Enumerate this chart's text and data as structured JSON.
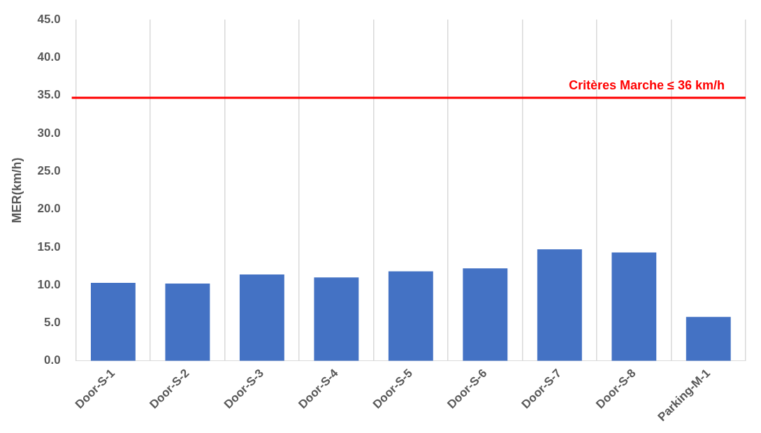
{
  "chart_data": {
    "type": "bar",
    "ylabel": "MER(km/h)",
    "categories": [
      "Door-S-1",
      "Door-S-2",
      "Door-S-3",
      "Door-S-4",
      "Door-S-5",
      "Door-S-6",
      "Door-S-7",
      "Door-S-8",
      "Parking-M-1"
    ],
    "values": [
      10.3,
      10.2,
      11.4,
      11.0,
      11.8,
      12.2,
      14.7,
      14.3,
      5.8
    ],
    "color": "#4472c4",
    "ylim": [
      0,
      45
    ],
    "yticks": [
      {
        "value": 0,
        "label": "0.0"
      },
      {
        "value": 5,
        "label": "5.0"
      },
      {
        "value": 10,
        "label": "10.0"
      },
      {
        "value": 15,
        "label": "15.0"
      },
      {
        "value": 20,
        "label": "20.0"
      },
      {
        "value": 25,
        "label": "25.0"
      },
      {
        "value": 30,
        "label": "30.0"
      },
      {
        "value": 35,
        "label": "35.0"
      },
      {
        "value": 40,
        "label": "40.0"
      },
      {
        "value": 45,
        "label": "45.0"
      }
    ],
    "grid": "x",
    "ref_lines": [
      {
        "axis": "y",
        "value": 34.7,
        "label": "Critères Marche ≤ 36 km/h",
        "color": "#ff0000"
      }
    ]
  }
}
